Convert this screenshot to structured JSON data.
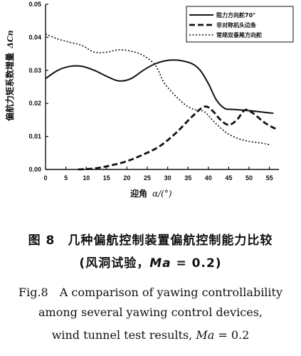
{
  "chart_data": {
    "type": "line",
    "ylabel": "偏航力矩系数增量",
    "ylabel_symbol": "ΔCn",
    "xlabel": "迎角",
    "xlabel_symbol": "α/(°)",
    "xlim": [
      0,
      58
    ],
    "ylim": [
      0,
      0.05
    ],
    "xticks": [
      "0",
      "5",
      "10",
      "15",
      "20",
      "25",
      "30",
      "35",
      "40",
      "45",
      "50",
      "55"
    ],
    "yticks": [
      "0.00",
      "0.01",
      "0.02",
      "0.03",
      "0.04",
      "0.05"
    ],
    "legend_position": "top-right",
    "series": [
      {
        "name": "阻力方向舵70°",
        "style": "solid",
        "x": [
          0,
          3,
          6,
          9,
          12,
          15,
          18,
          21,
          24,
          27,
          30,
          33,
          36,
          38,
          40,
          42,
          44,
          46,
          48,
          50,
          53,
          56
        ],
        "y": [
          0.0275,
          0.03,
          0.0312,
          0.0312,
          0.03,
          0.0282,
          0.0268,
          0.0275,
          0.03,
          0.032,
          0.033,
          0.033,
          0.032,
          0.03,
          0.026,
          0.021,
          0.0185,
          0.0182,
          0.018,
          0.0178,
          0.0174,
          0.017
        ]
      },
      {
        "name": "非对称机头边条",
        "style": "dashed",
        "x": [
          8,
          12,
          16,
          20,
          24,
          28,
          32,
          36,
          39,
          41,
          43,
          45,
          47,
          49,
          51,
          54,
          57
        ],
        "y": [
          0.0,
          0.0003,
          0.0012,
          0.0025,
          0.0045,
          0.007,
          0.011,
          0.016,
          0.019,
          0.0178,
          0.015,
          0.0135,
          0.015,
          0.018,
          0.017,
          0.014,
          0.012
        ]
      },
      {
        "name": "常规双垂尾方向舵",
        "style": "dotted",
        "x": [
          0,
          3,
          6,
          9,
          12,
          15,
          18,
          21,
          24,
          27,
          29,
          31,
          33,
          35,
          37,
          39,
          41,
          44,
          47,
          50,
          53,
          55
        ],
        "y": [
          0.041,
          0.0395,
          0.0385,
          0.0375,
          0.0355,
          0.0355,
          0.0362,
          0.0358,
          0.0345,
          0.0315,
          0.0265,
          0.0235,
          0.021,
          0.019,
          0.018,
          0.0175,
          0.015,
          0.0115,
          0.0095,
          0.0085,
          0.008,
          0.0075
        ]
      }
    ]
  },
  "caption": {
    "cn_line1": "图 8　几种偏航控制装置偏航控制能力比较",
    "cn_line2_pre": "(风洞试验，",
    "cn_line2_ma": "Ma",
    "cn_line2_post": " = 0.2)",
    "en_line1": "Fig.8　A comparison of yawing controllability",
    "en_line2": "among several yawing control devices,",
    "en_line3_pre": "wind tunnel test results, ",
    "en_line3_ma": "Ma",
    "en_line3_post": " = 0.2"
  }
}
